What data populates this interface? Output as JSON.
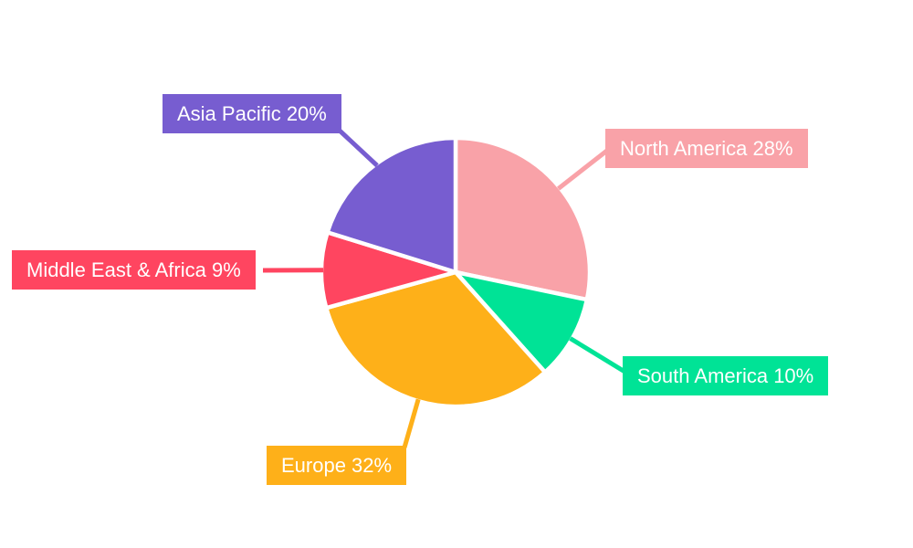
{
  "chart_data": {
    "type": "pie",
    "title": "",
    "legend": "none",
    "background": "#FFFFFF",
    "label_style": "colored callout boxes with white text and leader lines",
    "label_text_color": "#FFFFFF",
    "start_angle_deg": 0,
    "direction": "clockwise",
    "unit": "%",
    "slices": [
      {
        "label": "North America",
        "value": 28,
        "display": "North America 28%",
        "color": "#F9A2A8"
      },
      {
        "label": "South America",
        "value": 10,
        "display": "South America 10%",
        "color": "#00E396"
      },
      {
        "label": "Europe",
        "value": 32,
        "display": "Europe 32%",
        "color": "#FEB019"
      },
      {
        "label": "Middle East & Africa",
        "value": 9,
        "display": "Middle East & Africa 9%",
        "color": "#FF4560"
      },
      {
        "label": "Asia Pacific",
        "value": 20,
        "display": "Asia Pacific 20%",
        "color": "#775DD0"
      }
    ]
  }
}
